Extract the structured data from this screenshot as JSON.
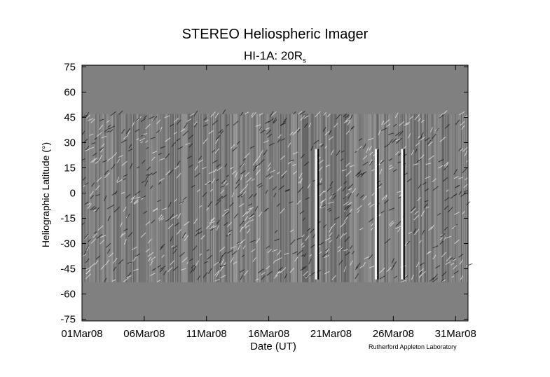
{
  "chart_data": {
    "type": "heatmap",
    "title": "STEREO Heliospheric Imager",
    "subtitle_main": "HI-1A: 20R",
    "subtitle_sub": "s",
    "xlabel": "Date (UT)",
    "ylabel": "Heliographic Latitude (°)",
    "xticks": [
      "01Mar08",
      "06Mar08",
      "11Mar08",
      "16Mar08",
      "21Mar08",
      "26Mar08",
      "31Mar08"
    ],
    "xtick_days": [
      1,
      6,
      11,
      16,
      21,
      26,
      31
    ],
    "xlim_days": [
      1,
      32
    ],
    "yticks": [
      75,
      60,
      45,
      30,
      15,
      0,
      -15,
      -30,
      -45,
      -60,
      -75
    ],
    "ylim": [
      -76,
      76
    ],
    "data_band_latitude": [
      -53,
      47
    ],
    "background_color": "#808080",
    "bright_features_days": [
      19.8,
      24.6,
      26.7
    ]
  },
  "credit": "Rutherford Appleton Laboratory"
}
